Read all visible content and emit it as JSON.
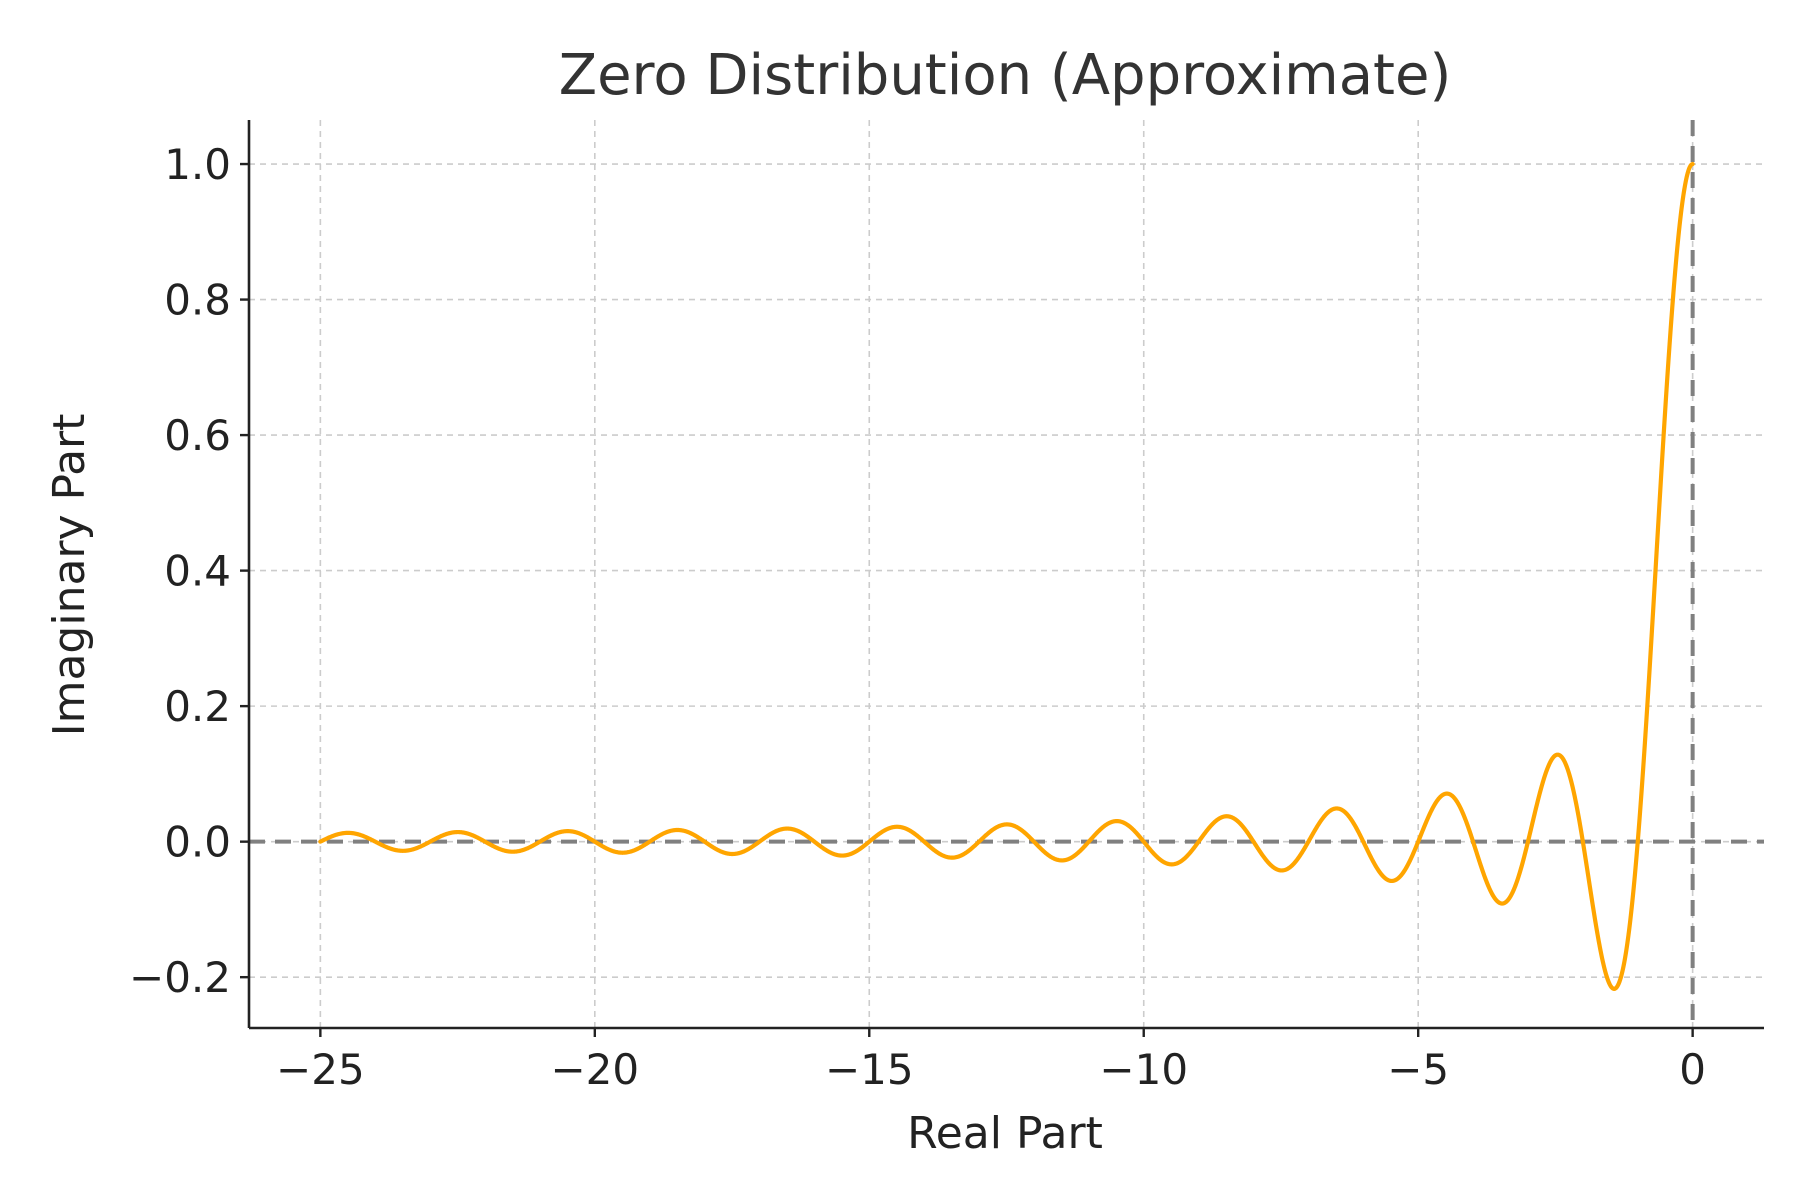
{
  "chart_data": {
    "type": "line",
    "title": "Zero Distribution (Approximate)",
    "xlabel": "Real Part",
    "ylabel": "Imaginary Part",
    "xlim": [
      -26.3,
      1.3
    ],
    "ylim": [
      -0.275,
      1.065
    ],
    "xticks": [
      -25,
      -20,
      -15,
      -10,
      -5,
      0
    ],
    "xtick_labels": [
      "−25",
      "−20",
      "−15",
      "−10",
      "−5",
      "0"
    ],
    "yticks": [
      -0.2,
      0.0,
      0.2,
      0.4,
      0.6,
      0.8,
      1.0
    ],
    "ytick_labels": [
      "−0.2",
      "0.0",
      "0.2",
      "0.4",
      "0.6",
      "0.8",
      "1.0"
    ],
    "grid": true,
    "reference_lines": {
      "horizontal_y": 0,
      "vertical_x": 0,
      "color": "#808080",
      "style": "dashed"
    },
    "series": [
      {
        "color": "#FFA500",
        "function": "sin(pi*x)/(pi*x), with value 1 at x = 0",
        "x_range": [
          -25,
          0
        ],
        "sample_points": [
          {
            "x": -25,
            "y": 0.0
          },
          {
            "x": -24.5,
            "y": 0.013
          },
          {
            "x": -23.5,
            "y": -0.0135
          },
          {
            "x": -22.5,
            "y": 0.0141
          },
          {
            "x": -20.5,
            "y": 0.0155
          },
          {
            "x": -18.5,
            "y": 0.0172
          },
          {
            "x": -16.5,
            "y": 0.0193
          },
          {
            "x": -14.5,
            "y": 0.022
          },
          {
            "x": -12.5,
            "y": 0.0255
          },
          {
            "x": -10.5,
            "y": 0.0303
          },
          {
            "x": -9.5,
            "y": -0.0335
          },
          {
            "x": -8.5,
            "y": 0.0374
          },
          {
            "x": -7.5,
            "y": -0.0424
          },
          {
            "x": -6.5,
            "y": 0.049
          },
          {
            "x": -5.5,
            "y": -0.0579
          },
          {
            "x": -4.5,
            "y": 0.0707
          },
          {
            "x": -3.5,
            "y": -0.0909
          },
          {
            "x": -2.5,
            "y": 0.1273
          },
          {
            "x": -1.43,
            "y": -0.2172
          },
          {
            "x": -1.0,
            "y": 0.0
          },
          {
            "x": -0.5,
            "y": 0.6366
          },
          {
            "x": 0,
            "y": 1.0
          }
        ]
      }
    ]
  }
}
